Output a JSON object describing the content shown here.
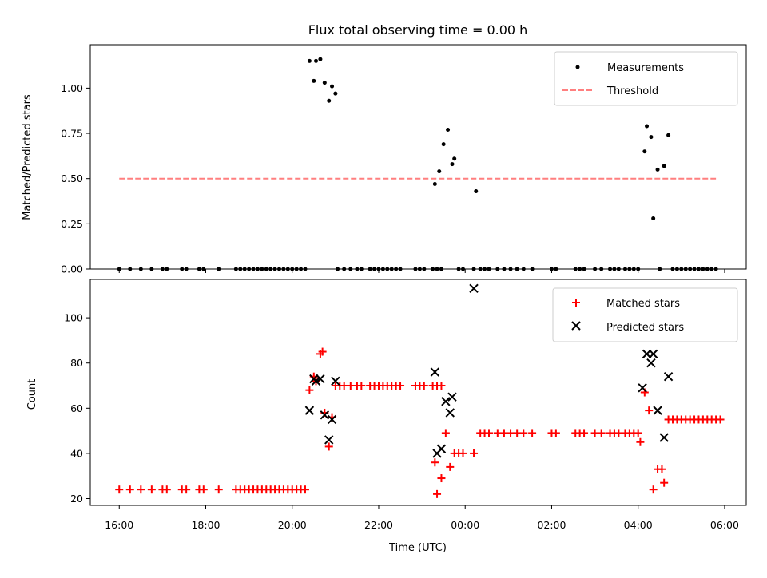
{
  "figure": {
    "title": "Flux total observing time = 0.00 h",
    "xlabel": "Time (UTC)",
    "x_ticks": [
      "16:00",
      "18:00",
      "20:00",
      "22:00",
      "00:00",
      "02:00",
      "04:00",
      "06:00"
    ]
  },
  "colors": {
    "measurement": "#000000",
    "threshold": "#ff7f7f",
    "matched": "#ff0000",
    "predicted": "#000000"
  },
  "chart_data": [
    {
      "type": "scatter",
      "ylabel": "Matched/Predicted stars",
      "x_unit": "hours since 16:00 UTC",
      "xlim": [
        -0.67,
        14.5
      ],
      "ylim": [
        0,
        1.24
      ],
      "y_ticks": [
        "0.00",
        "0.25",
        "0.50",
        "0.75",
        "1.00"
      ],
      "legend": {
        "position": "upper right",
        "entries": [
          "Measurements",
          "Threshold"
        ]
      },
      "threshold": {
        "name": "Threshold",
        "y": 0.5,
        "x_range": [
          0.0,
          13.8
        ]
      },
      "series": [
        {
          "name": "Measurements",
          "points": [
            [
              0.0,
              0
            ],
            [
              0.25,
              0
            ],
            [
              0.5,
              0
            ],
            [
              0.75,
              0
            ],
            [
              1.0,
              0
            ],
            [
              1.1,
              0
            ],
            [
              1.45,
              0
            ],
            [
              1.55,
              0
            ],
            [
              1.85,
              0
            ],
            [
              1.95,
              0
            ],
            [
              2.3,
              0
            ],
            [
              2.7,
              0
            ],
            [
              2.8,
              0
            ],
            [
              2.9,
              0
            ],
            [
              3.0,
              0
            ],
            [
              3.1,
              0
            ],
            [
              3.2,
              0
            ],
            [
              3.3,
              0
            ],
            [
              3.4,
              0
            ],
            [
              3.5,
              0
            ],
            [
              3.6,
              0
            ],
            [
              3.7,
              0
            ],
            [
              3.8,
              0
            ],
            [
              3.9,
              0
            ],
            [
              4.0,
              0
            ],
            [
              4.1,
              0
            ],
            [
              4.2,
              0
            ],
            [
              4.3,
              0
            ],
            [
              4.4,
              1.15
            ],
            [
              4.5,
              1.04
            ],
            [
              4.55,
              1.15
            ],
            [
              4.65,
              1.16
            ],
            [
              4.75,
              1.03
            ],
            [
              4.85,
              0.93
            ],
            [
              4.92,
              1.01
            ],
            [
              5.0,
              0.97
            ],
            [
              5.05,
              0
            ],
            [
              5.2,
              0
            ],
            [
              5.35,
              0
            ],
            [
              5.5,
              0
            ],
            [
              5.6,
              0
            ],
            [
              5.8,
              0
            ],
            [
              5.9,
              0
            ],
            [
              6.0,
              0
            ],
            [
              6.1,
              0
            ],
            [
              6.2,
              0
            ],
            [
              6.3,
              0
            ],
            [
              6.4,
              0
            ],
            [
              6.5,
              0
            ],
            [
              6.85,
              0
            ],
            [
              6.95,
              0
            ],
            [
              7.05,
              0
            ],
            [
              7.25,
              0
            ],
            [
              7.35,
              0
            ],
            [
              7.45,
              0
            ],
            [
              7.3,
              0.47
            ],
            [
              7.4,
              0.54
            ],
            [
              7.5,
              0.69
            ],
            [
              7.6,
              0.77
            ],
            [
              7.7,
              0.58
            ],
            [
              7.75,
              0.61
            ],
            [
              7.85,
              0
            ],
            [
              7.95,
              0
            ],
            [
              8.2,
              0
            ],
            [
              8.35,
              0
            ],
            [
              8.45,
              0
            ],
            [
              8.55,
              0
            ],
            [
              8.75,
              0
            ],
            [
              8.9,
              0
            ],
            [
              9.05,
              0
            ],
            [
              9.2,
              0
            ],
            [
              9.35,
              0
            ],
            [
              9.55,
              0
            ],
            [
              8.25,
              0.43
            ],
            [
              10.0,
              0
            ],
            [
              10.1,
              0
            ],
            [
              10.55,
              0
            ],
            [
              10.65,
              0
            ],
            [
              10.75,
              0
            ],
            [
              11.0,
              0
            ],
            [
              11.15,
              0
            ],
            [
              11.35,
              0
            ],
            [
              11.45,
              0
            ],
            [
              11.55,
              0
            ],
            [
              11.7,
              0
            ],
            [
              11.8,
              0
            ],
            [
              11.9,
              0
            ],
            [
              12.0,
              0
            ],
            [
              12.15,
              0.65
            ],
            [
              12.2,
              0.79
            ],
            [
              12.3,
              0.73
            ],
            [
              12.35,
              0.28
            ],
            [
              12.45,
              0.55
            ],
            [
              12.6,
              0.57
            ],
            [
              12.7,
              0.74
            ],
            [
              12.5,
              0
            ],
            [
              12.8,
              0
            ],
            [
              12.9,
              0
            ],
            [
              13.0,
              0
            ],
            [
              13.1,
              0
            ],
            [
              13.2,
              0
            ],
            [
              13.3,
              0
            ],
            [
              13.4,
              0
            ],
            [
              13.5,
              0
            ],
            [
              13.6,
              0
            ],
            [
              13.7,
              0
            ],
            [
              13.8,
              0
            ]
          ]
        }
      ]
    },
    {
      "type": "scatter",
      "ylabel": "Count",
      "x_unit": "hours since 16:00 UTC",
      "xlim": [
        -0.67,
        14.5
      ],
      "ylim": [
        17,
        117
      ],
      "y_ticks": [
        "20",
        "40",
        "60",
        "80",
        "100"
      ],
      "legend": {
        "position": "upper right",
        "entries": [
          "Matched stars",
          "Predicted stars"
        ]
      },
      "series": [
        {
          "name": "Matched stars",
          "marker": "plus",
          "points": [
            [
              0.0,
              24
            ],
            [
              0.25,
              24
            ],
            [
              0.5,
              24
            ],
            [
              0.75,
              24
            ],
            [
              1.0,
              24
            ],
            [
              1.1,
              24
            ],
            [
              1.45,
              24
            ],
            [
              1.55,
              24
            ],
            [
              1.85,
              24
            ],
            [
              1.95,
              24
            ],
            [
              2.3,
              24
            ],
            [
              2.7,
              24
            ],
            [
              2.8,
              24
            ],
            [
              2.9,
              24
            ],
            [
              3.0,
              24
            ],
            [
              3.1,
              24
            ],
            [
              3.2,
              24
            ],
            [
              3.3,
              24
            ],
            [
              3.4,
              24
            ],
            [
              3.5,
              24
            ],
            [
              3.6,
              24
            ],
            [
              3.7,
              24
            ],
            [
              3.8,
              24
            ],
            [
              3.9,
              24
            ],
            [
              4.0,
              24
            ],
            [
              4.1,
              24
            ],
            [
              4.2,
              24
            ],
            [
              4.3,
              24
            ],
            [
              4.4,
              68
            ],
            [
              4.5,
              74
            ],
            [
              4.55,
              72
            ],
            [
              4.65,
              84
            ],
            [
              4.7,
              85
            ],
            [
              4.75,
              58
            ],
            [
              4.85,
              43
            ],
            [
              4.92,
              56
            ],
            [
              5.0,
              70
            ],
            [
              5.1,
              70
            ],
            [
              5.2,
              70
            ],
            [
              5.35,
              70
            ],
            [
              5.5,
              70
            ],
            [
              5.6,
              70
            ],
            [
              5.8,
              70
            ],
            [
              5.9,
              70
            ],
            [
              6.0,
              70
            ],
            [
              6.1,
              70
            ],
            [
              6.2,
              70
            ],
            [
              6.3,
              70
            ],
            [
              6.4,
              70
            ],
            [
              6.5,
              70
            ],
            [
              6.85,
              70
            ],
            [
              6.95,
              70
            ],
            [
              7.05,
              70
            ],
            [
              7.25,
              70
            ],
            [
              7.35,
              70
            ],
            [
              7.45,
              70
            ],
            [
              7.3,
              36
            ],
            [
              7.35,
              22
            ],
            [
              7.45,
              29
            ],
            [
              7.55,
              49
            ],
            [
              7.65,
              34
            ],
            [
              7.75,
              40
            ],
            [
              7.85,
              40
            ],
            [
              7.95,
              40
            ],
            [
              8.2,
              40
            ],
            [
              8.35,
              49
            ],
            [
              8.45,
              49
            ],
            [
              8.55,
              49
            ],
            [
              8.75,
              49
            ],
            [
              8.9,
              49
            ],
            [
              9.05,
              49
            ],
            [
              9.2,
              49
            ],
            [
              9.35,
              49
            ],
            [
              9.55,
              49
            ],
            [
              10.0,
              49
            ],
            [
              10.1,
              49
            ],
            [
              10.55,
              49
            ],
            [
              10.65,
              49
            ],
            [
              10.75,
              49
            ],
            [
              11.0,
              49
            ],
            [
              11.15,
              49
            ],
            [
              11.35,
              49
            ],
            [
              11.45,
              49
            ],
            [
              11.55,
              49
            ],
            [
              11.7,
              49
            ],
            [
              11.8,
              49
            ],
            [
              11.9,
              49
            ],
            [
              12.0,
              49
            ],
            [
              12.05,
              45
            ],
            [
              12.15,
              67
            ],
            [
              12.25,
              59
            ],
            [
              12.35,
              24
            ],
            [
              12.45,
              33
            ],
            [
              12.55,
              33
            ],
            [
              12.6,
              27
            ],
            [
              12.7,
              55
            ],
            [
              12.8,
              55
            ],
            [
              12.9,
              55
            ],
            [
              13.0,
              55
            ],
            [
              13.1,
              55
            ],
            [
              13.2,
              55
            ],
            [
              13.3,
              55
            ],
            [
              13.4,
              55
            ],
            [
              13.5,
              55
            ],
            [
              13.6,
              55
            ],
            [
              13.7,
              55
            ],
            [
              13.8,
              55
            ],
            [
              13.9,
              55
            ]
          ]
        },
        {
          "name": "Predicted stars",
          "marker": "x",
          "points": [
            [
              4.4,
              59
            ],
            [
              4.5,
              73
            ],
            [
              4.55,
              72
            ],
            [
              4.65,
              73
            ],
            [
              4.75,
              57
            ],
            [
              4.85,
              46
            ],
            [
              4.92,
              55
            ],
            [
              5.0,
              72
            ],
            [
              7.3,
              76
            ],
            [
              7.35,
              40
            ],
            [
              7.45,
              42
            ],
            [
              7.55,
              63
            ],
            [
              7.65,
              58
            ],
            [
              7.7,
              65
            ],
            [
              8.2,
              113
            ],
            [
              12.1,
              69
            ],
            [
              12.2,
              84
            ],
            [
              12.3,
              80
            ],
            [
              12.35,
              84
            ],
            [
              12.45,
              59
            ],
            [
              12.6,
              47
            ],
            [
              12.7,
              74
            ]
          ]
        }
      ]
    }
  ]
}
